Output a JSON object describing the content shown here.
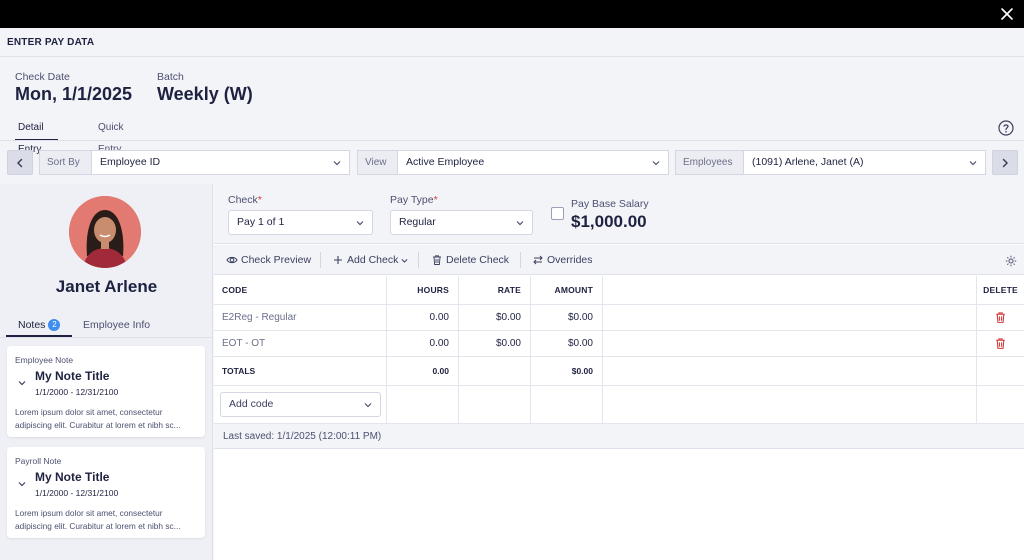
{
  "window": {
    "title": "ENTER PAY DATA"
  },
  "check_info": {
    "check_date_label": "Check Date",
    "check_date_value": "Mon, 1/1/2025",
    "batch_label": "Batch",
    "batch_value": "Weekly (W)"
  },
  "tabs": [
    {
      "label": "Detail Entry",
      "active": true
    },
    {
      "label": "Quick Entry",
      "active": false
    }
  ],
  "filters": {
    "sort_by_label": "Sort By",
    "sort_by_value": "Employee ID",
    "view_label": "View",
    "view_value": "Active Employee",
    "employees_label": "Employees",
    "employees_value": "(1091) Arlene, Janet (A)"
  },
  "employee": {
    "name": "Janet Arlene",
    "avatar_color": "#e27a72"
  },
  "left_tabs": {
    "notes_label": "Notes",
    "notes_count": "2",
    "employee_info_label": "Employee Info"
  },
  "notes": [
    {
      "kind": "Employee Note",
      "title": "My Note Title",
      "dates": "1/1/2000 - 12/31/2100",
      "body": "Lorem ipsum dolor sit amet, consectetur adipiscing elit. Curabitur at lorem et nibh sc..."
    },
    {
      "kind": "Payroll Note",
      "title": "My Note Title",
      "dates": "1/1/2000 - 12/31/2100",
      "body": "Lorem ipsum dolor sit amet, consectetur adipiscing elit. Curabitur at lorem et nibh sc..."
    }
  ],
  "check_form": {
    "check_label": "Check",
    "check_value": "Pay 1 of 1",
    "pay_type_label": "Pay Type",
    "pay_type_value": "Regular",
    "base_salary_label": "Pay Base Salary",
    "base_salary_value": "$1,000.00",
    "base_salary_checked": false
  },
  "toolbar": {
    "check_preview": "Check Preview",
    "add_check": "Add Check",
    "delete_check": "Delete Check",
    "overrides": "Overrides"
  },
  "table": {
    "headers": {
      "code": "CODE",
      "hours": "HOURS",
      "rate": "RATE",
      "amount": "AMOUNT",
      "delete": "DELETE"
    },
    "rows": [
      {
        "code": "E2Reg - Regular",
        "hours": "0.00",
        "rate": "$0.00",
        "amount": "$0.00"
      },
      {
        "code": "EOT - OT",
        "hours": "0.00",
        "rate": "$0.00",
        "amount": "$0.00"
      }
    ],
    "totals": {
      "label": "TOTALS",
      "hours": "0.00",
      "amount": "$0.00"
    },
    "add_code_placeholder": "Add code"
  },
  "status": {
    "last_saved": "Last saved: 1/1/2025 (12:00:11 PM)"
  },
  "colors": {
    "accent": "#3d8ef0",
    "delete": "#d23a3a",
    "dark": "#1e2240"
  }
}
